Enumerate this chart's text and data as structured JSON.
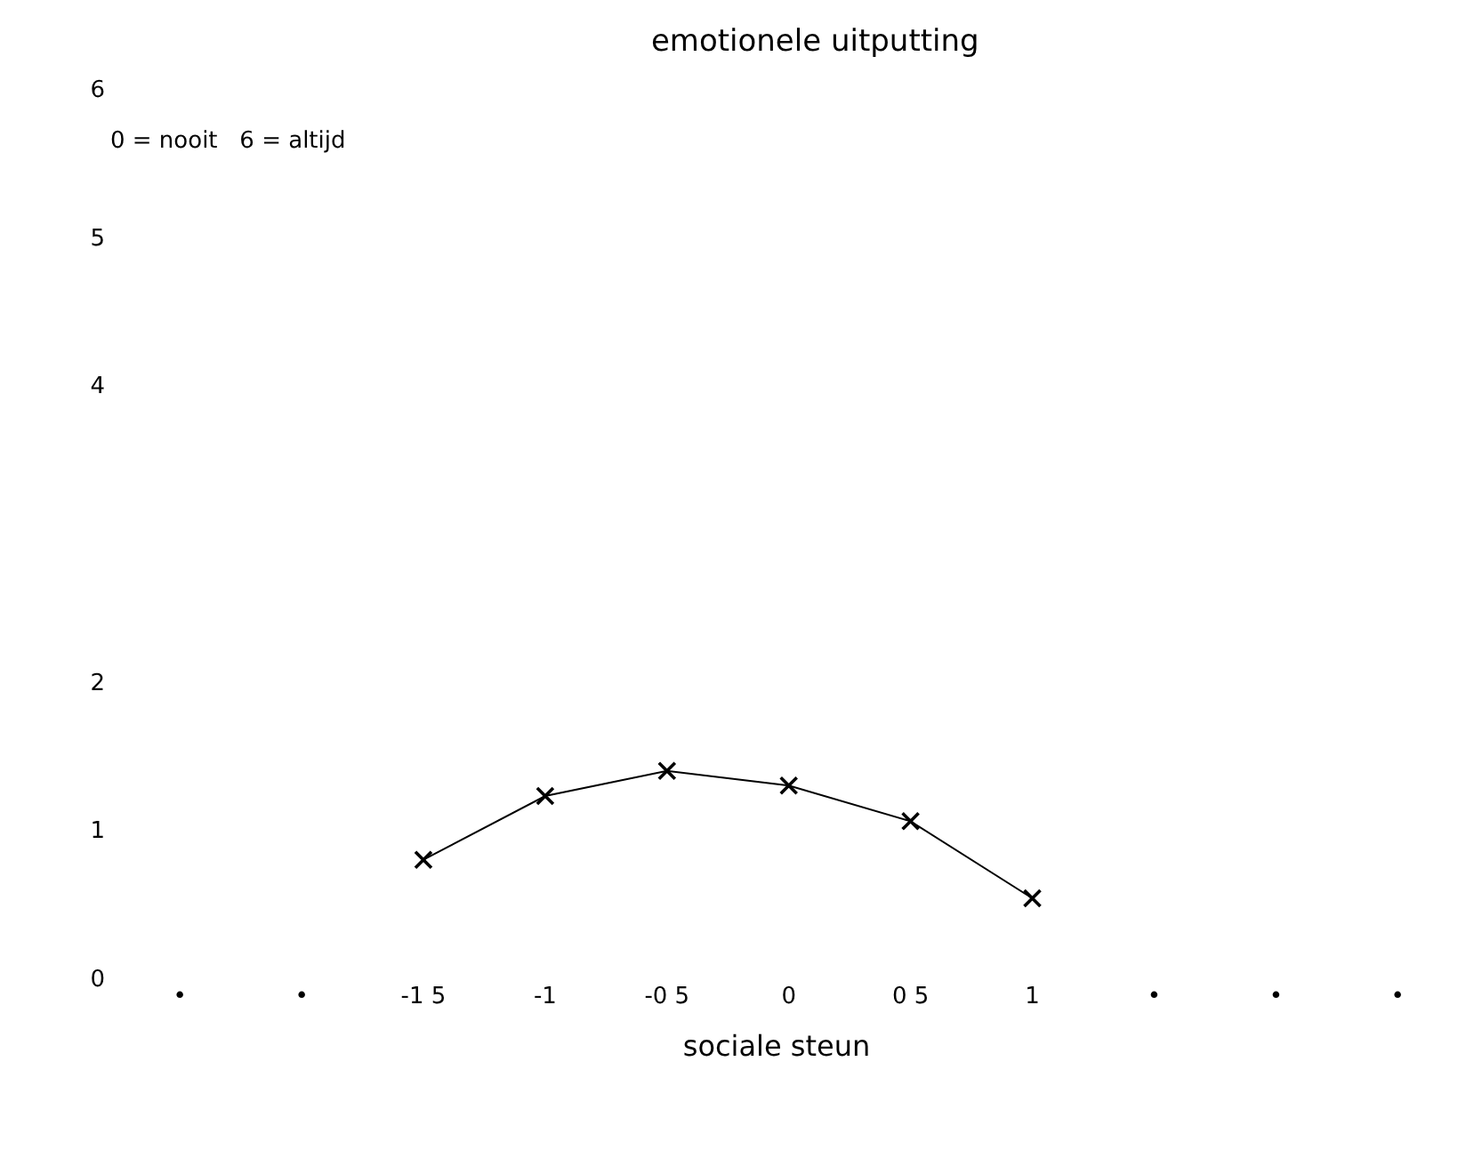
{
  "chart_data": {
    "type": "line",
    "title": "emotionele uitputting",
    "xlabel": "sociale steun",
    "annotations": [
      "0 = nooit   6 = altijd"
    ],
    "categories": [
      "•",
      "•",
      "-1 5",
      "-1",
      "-0 5",
      "0",
      "0 5",
      "1",
      "•",
      "•",
      "•"
    ],
    "series": [
      {
        "color": "#000000",
        "values": [
          null,
          null,
          0.8,
          1.23,
          1.4,
          1.3,
          1.06,
          0.54,
          null,
          null,
          null
        ]
      }
    ],
    "ylim": [
      0,
      6
    ],
    "yticks": [
      0,
      1,
      2,
      4,
      5,
      6
    ],
    "legend": false,
    "marker": "cross",
    "line_style": "solid"
  }
}
